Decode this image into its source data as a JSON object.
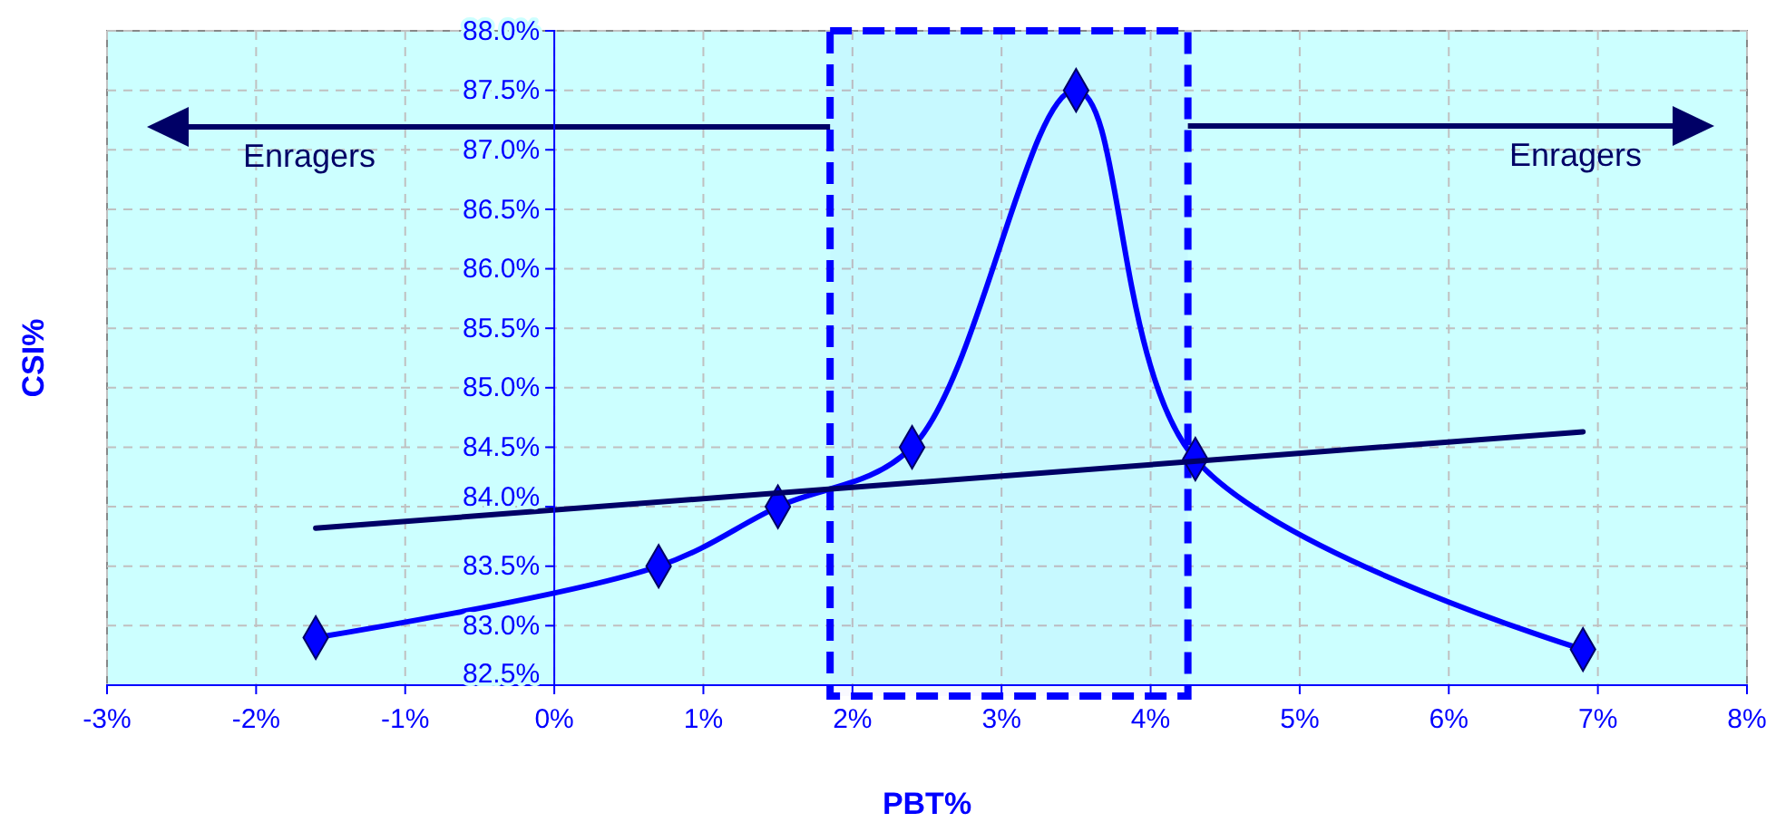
{
  "chart_data": {
    "type": "line",
    "xlabel": "PBT%",
    "ylabel": "CSI%",
    "xlim": [
      -3,
      8
    ],
    "xticks": [
      {
        "value": -3,
        "label": "-3%"
      },
      {
        "value": -2,
        "label": "-2%"
      },
      {
        "value": -1,
        "label": "-1%"
      },
      {
        "value": 0,
        "label": "0%"
      },
      {
        "value": 1,
        "label": "1%"
      },
      {
        "value": 2,
        "label": "2%"
      },
      {
        "value": 3,
        "label": "3%"
      },
      {
        "value": 4,
        "label": "4%"
      },
      {
        "value": 5,
        "label": "5%"
      },
      {
        "value": 6,
        "label": "6%"
      },
      {
        "value": 7,
        "label": "7%"
      },
      {
        "value": 8,
        "label": "8%"
      }
    ],
    "ylim": [
      82.5,
      88
    ],
    "yticks": [
      {
        "value": 82.5,
        "label": "82.5%"
      },
      {
        "value": 83,
        "label": "83.0%"
      },
      {
        "value": 83.5,
        "label": "83.5%"
      },
      {
        "value": 84,
        "label": "84.0%"
      },
      {
        "value": 84.5,
        "label": "84.5%"
      },
      {
        "value": 85,
        "label": "85.0%"
      },
      {
        "value": 85.5,
        "label": "85.5%"
      },
      {
        "value": 86,
        "label": "86.0%"
      },
      {
        "value": 86.5,
        "label": "86.5%"
      },
      {
        "value": 87,
        "label": "87.0%"
      },
      {
        "value": 87.5,
        "label": "87.5%"
      },
      {
        "value": 88,
        "label": "88.0%"
      }
    ],
    "grid": true,
    "series": [
      {
        "color": "#0000ff",
        "marker": "diamond",
        "x": [
          -1.6,
          0.7,
          1.5,
          2.4,
          3.5,
          4.3,
          6.9
        ],
        "values": [
          82.9,
          83.5,
          84.0,
          84.5,
          87.5,
          84.4,
          82.8
        ]
      },
      {
        "color": "#000066",
        "marker": "none",
        "x": [
          -1.6,
          6.9
        ],
        "values": [
          83.82,
          84.63
        ]
      }
    ],
    "bands": [
      {
        "axis": "x",
        "from": 1.85,
        "to": 4.25,
        "color": "#0000ff"
      }
    ],
    "annotations": [
      "Enragers",
      {
        "text": "Enragers",
        "x": 4.25,
        "y": 87.2
      }
    ]
  }
}
